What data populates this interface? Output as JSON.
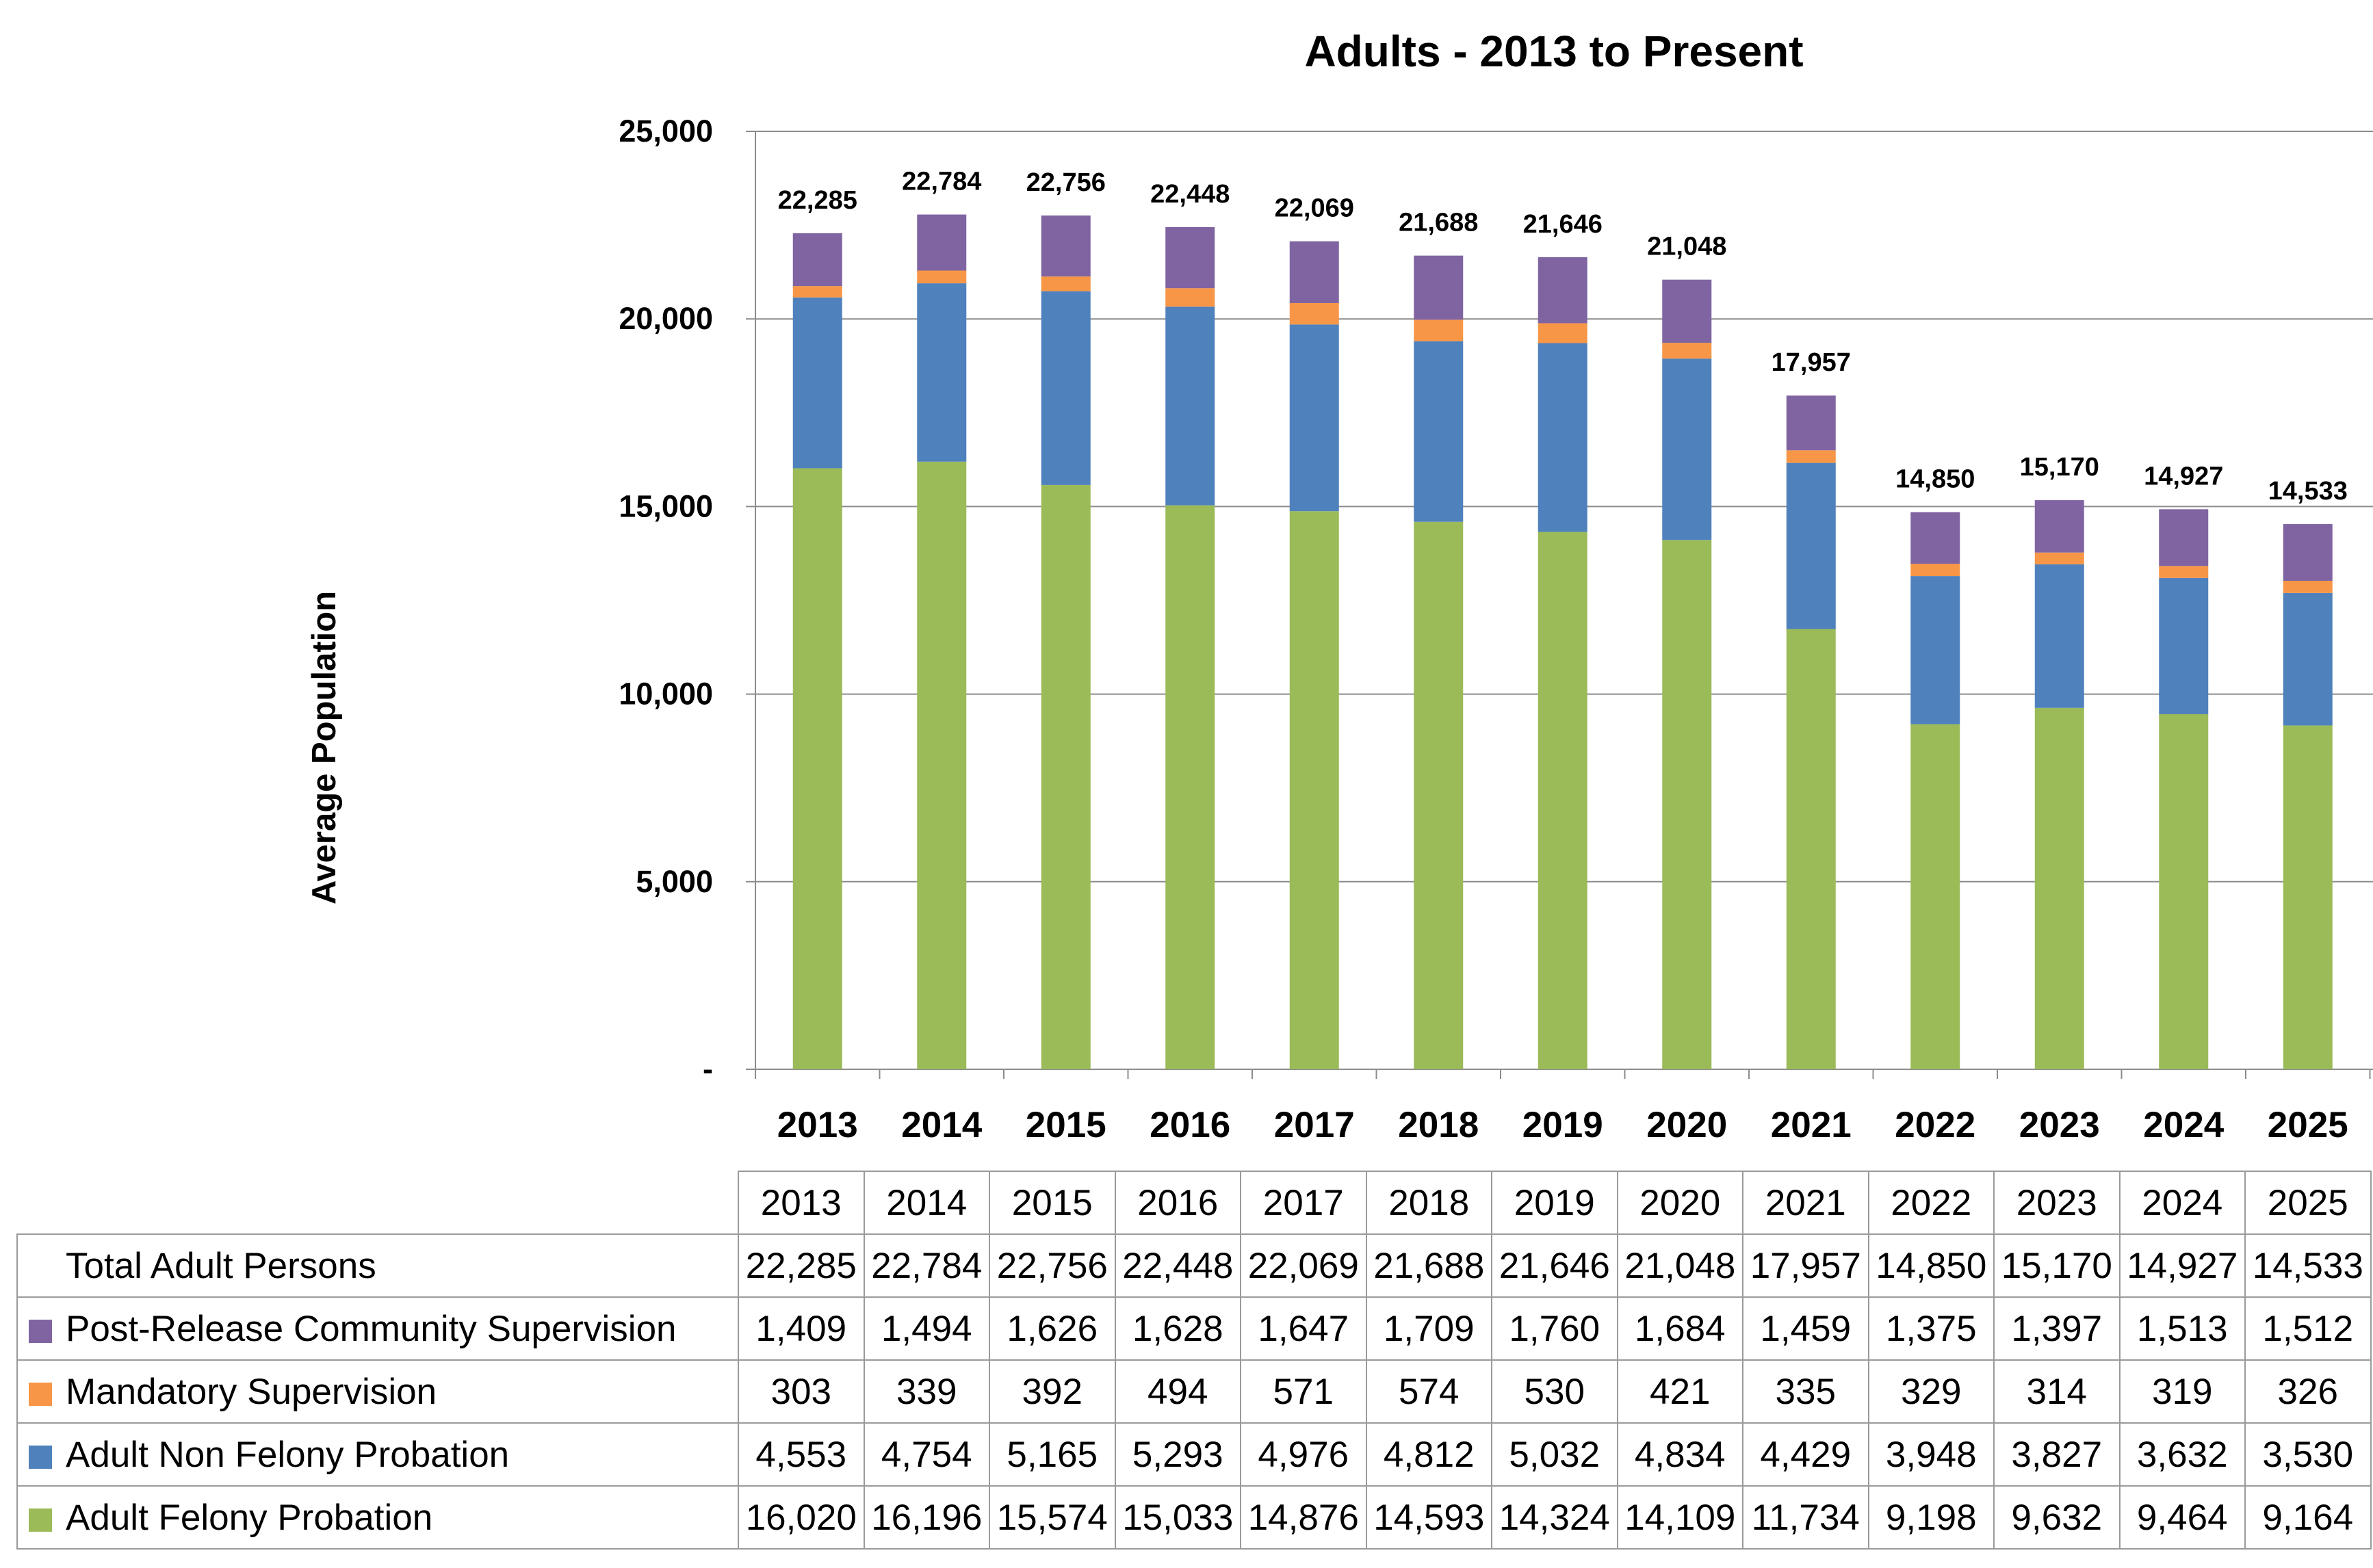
{
  "chart_data": {
    "type": "bar",
    "stacked": true,
    "title": "Adults - 2013 to Present",
    "ylabel": "Average Population",
    "xlabel": "",
    "ylim": [
      0,
      25000
    ],
    "yticks": [
      0,
      5000,
      10000,
      15000,
      20000,
      25000
    ],
    "ytick_labels": [
      "-",
      "5,000",
      "10,000",
      "15,000",
      "20,000",
      "25,000"
    ],
    "grid": true,
    "categories": [
      "2013",
      "2014",
      "2015",
      "2016",
      "2017",
      "2018",
      "2019",
      "2020",
      "2021",
      "2022",
      "2023",
      "2024",
      "2025"
    ],
    "totals_label": "Total Adult Persons",
    "totals": [
      22285,
      22784,
      22756,
      22448,
      22069,
      21688,
      21646,
      21048,
      17957,
      14850,
      15170,
      14927,
      14533
    ],
    "series": [
      {
        "name": "Adult Felony Probation",
        "color": "#9bbb59",
        "values": [
          16020,
          16196,
          15574,
          15033,
          14876,
          14593,
          14324,
          14109,
          11734,
          9198,
          9632,
          9464,
          9164
        ]
      },
      {
        "name": "Adult Non Felony Probation",
        "color": "#4f81bd",
        "values": [
          4553,
          4754,
          5165,
          5293,
          4976,
          4812,
          5032,
          4834,
          4429,
          3948,
          3827,
          3632,
          3530
        ]
      },
      {
        "name": "Mandatory Supervision",
        "color": "#f79646",
        "values": [
          303,
          339,
          392,
          494,
          571,
          574,
          530,
          421,
          335,
          329,
          314,
          319,
          326
        ]
      },
      {
        "name": "Post-Release Community Supervision",
        "color": "#8064a2",
        "values": [
          1409,
          1494,
          1626,
          1628,
          1647,
          1709,
          1760,
          1684,
          1459,
          1375,
          1397,
          1513,
          1512
        ]
      }
    ],
    "table_row_order": [
      "Post-Release Community Supervision",
      "Mandatory Supervision",
      "Adult Non Felony Probation",
      "Adult Felony Probation"
    ]
  }
}
